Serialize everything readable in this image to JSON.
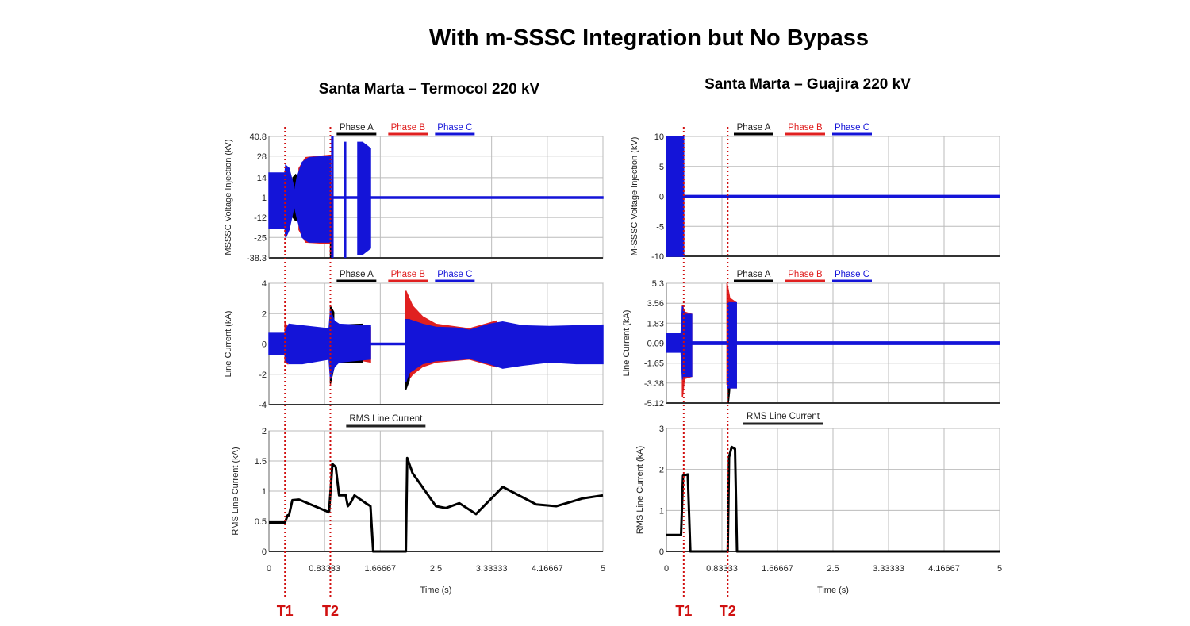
{
  "title": "With m-SSSC Integration but No Bypass",
  "panels": [
    {
      "subtitle": "Santa Marta – Termocol 220 kV"
    },
    {
      "subtitle": "Santa Marta – Guajira 220 kV"
    }
  ],
  "markers": {
    "color": "#d01010",
    "left": [
      {
        "label": "T1",
        "t": 0.24
      },
      {
        "label": "T2",
        "t": 0.92
      }
    ],
    "right": [
      {
        "label": "T1",
        "t": 0.26
      },
      {
        "label": "T2",
        "t": 0.92
      }
    ]
  },
  "phase_colors": {
    "A": "#000000",
    "B": "#e02020",
    "C": "#1414d8"
  },
  "chart_data": [
    {
      "type": "area",
      "panel": 0,
      "ylabel": "MSSSC Voltage Injection (kV)",
      "xlabel": "",
      "legend": [
        "Phase A",
        "Phase B",
        "Phase C"
      ],
      "legend_placement": "top-center",
      "xlim": [
        0,
        5
      ],
      "ylim": [
        -38.3,
        40.8
      ],
      "xticks": [],
      "yticks": [
        "40.8",
        "28",
        "14",
        "1",
        "-12",
        "-25",
        "-38.3"
      ],
      "grid": true,
      "series": [
        {
          "name": "Phase B",
          "envelopes": [
            [
              [
                0.45,
                20,
                -20
              ],
              [
                0.55,
                27,
                -28
              ],
              [
                0.9,
                28.5,
                -29
              ]
            ]
          ]
        },
        {
          "name": "Phase A",
          "envelopes": [
            [
              [
                0.36,
                14,
                -12
              ],
              [
                0.4,
                16,
                -14
              ],
              [
                0.44,
                14,
                -13
              ]
            ],
            [
              [
                0.92,
                0,
                -38.3
              ],
              [
                0.94,
                0,
                -38.3
              ]
            ]
          ]
        },
        {
          "name": "Phase C",
          "envelopes": [
            [
              [
                0,
                17,
                -19
              ],
              [
                0.24,
                17,
                -19
              ],
              [
                0.25,
                22,
                -25
              ],
              [
                0.3,
                20,
                -20
              ],
              [
                0.36,
                10,
                -8
              ],
              [
                0.38,
                4,
                -4
              ],
              [
                0.42,
                14,
                -12
              ],
              [
                0.5,
                24,
                -25
              ],
              [
                0.6,
                27,
                -28
              ],
              [
                0.92,
                28,
                -28
              ]
            ],
            [
              [
                0.93,
                1.5,
                0.5
              ],
              [
                5,
                1.5,
                0.5
              ]
            ],
            [
              [
                0.94,
                40.8,
                -38
              ],
              [
                0.96,
                40.8,
                -38
              ]
            ],
            [
              [
                1.13,
                37,
                -38
              ],
              [
                1.15,
                37,
                -38
              ]
            ],
            [
              [
                1.33,
                37,
                -36
              ],
              [
                1.4,
                37,
                -36
              ],
              [
                1.52,
                33,
                -32
              ]
            ]
          ]
        }
      ]
    },
    {
      "type": "area",
      "panel": 0,
      "ylabel": "Line Current (kA)",
      "xlabel": "",
      "legend": [
        "Phase A",
        "Phase B",
        "Phase C"
      ],
      "legend_placement": "top-center",
      "xlim": [
        0,
        5
      ],
      "ylim": [
        -4,
        4
      ],
      "xticks": [],
      "yticks": [
        "4",
        "2",
        "0",
        "-2",
        "-4"
      ],
      "grid": true,
      "series": [
        {
          "name": "Phase B",
          "envelopes": [
            [
              [
                0.24,
                1.4,
                -1.2
              ],
              [
                0.28,
                1.1,
                -1.3
              ]
            ],
            [
              [
                0.92,
                2.3,
                -2.7
              ],
              [
                0.96,
                1.5,
                -1.6
              ]
            ],
            [
              [
                1.4,
                1.25,
                -1.1
              ],
              [
                1.52,
                1.1,
                -1.2
              ]
            ],
            [
              [
                2.05,
                3.5,
                -2.6
              ],
              [
                2.15,
                2.5,
                -2.0
              ],
              [
                2.3,
                1.8,
                -1.5
              ],
              [
                2.5,
                1.3,
                -1.2
              ],
              [
                3.0,
                1.0,
                -1.0
              ],
              [
                3.4,
                1.5,
                -1.5
              ]
            ]
          ]
        },
        {
          "name": "Phase A",
          "envelopes": [
            [
              [
                0.92,
                2.5,
                -2.6
              ],
              [
                0.97,
                2.1,
                -1.6
              ]
            ],
            [
              [
                1.05,
                1.25,
                -1.2
              ],
              [
                1.4,
                1.3,
                -1.2
              ]
            ],
            [
              [
                2.05,
                1.6,
                -3.0
              ],
              [
                2.1,
                1.6,
                -2.4
              ]
            ]
          ]
        },
        {
          "name": "Phase C",
          "envelopes": [
            [
              [
                0,
                0.7,
                -0.7
              ],
              [
                0.24,
                0.7,
                -0.7
              ],
              [
                0.25,
                0.9,
                -1.1
              ],
              [
                0.3,
                1.3,
                -1.3
              ],
              [
                0.5,
                1.2,
                -1.3
              ],
              [
                0.9,
                1.0,
                -1.0
              ],
              [
                0.92,
                2.2,
                -2.3
              ],
              [
                0.98,
                1.5,
                -1.5
              ],
              [
                1.05,
                1.3,
                -1.2
              ],
              [
                1.52,
                1.2,
                -1.0
              ]
            ],
            [
              [
                1.52,
                0.05,
                -0.05
              ],
              [
                2.05,
                0.05,
                -0.05
              ]
            ],
            [
              [
                2.05,
                1.6,
                -2.5
              ],
              [
                2.1,
                1.6,
                -1.9
              ],
              [
                2.3,
                1.3,
                -1.3
              ],
              [
                2.5,
                1.1,
                -1.1
              ],
              [
                2.8,
                1.05,
                -1.05
              ],
              [
                3.0,
                0.9,
                -0.95
              ],
              [
                3.3,
                1.3,
                -1.3
              ],
              [
                3.5,
                1.45,
                -1.6
              ],
              [
                3.8,
                1.2,
                -1.4
              ],
              [
                4.2,
                1.15,
                -1.2
              ],
              [
                4.6,
                1.2,
                -1.3
              ],
              [
                5,
                1.25,
                -1.3
              ]
            ]
          ]
        }
      ]
    },
    {
      "type": "line",
      "panel": 0,
      "title": "RMS Line Current",
      "ylabel": "RMS Line Current (kA)",
      "xlabel": "Time (s)",
      "xlim": [
        0,
        5
      ],
      "ylim": [
        0,
        2
      ],
      "xticks": [
        "0",
        "0.83333",
        "1.66667",
        "2.5",
        "3.33333",
        "4.16667",
        "5"
      ],
      "yticks": [
        "2",
        "1.5",
        "1",
        "0.5",
        "0"
      ],
      "grid": true,
      "x": [
        0,
        0.24,
        0.28,
        0.3,
        0.35,
        0.45,
        0.9,
        0.95,
        1.0,
        1.05,
        1.15,
        1.18,
        1.22,
        1.28,
        1.45,
        1.52,
        1.56,
        2.05,
        2.07,
        2.15,
        2.5,
        2.65,
        2.85,
        3.1,
        3.5,
        4.0,
        4.3,
        4.7,
        5.0
      ],
      "y": [
        0.48,
        0.48,
        0.6,
        0.6,
        0.85,
        0.86,
        0.65,
        1.45,
        1.4,
        0.93,
        0.93,
        0.75,
        0.8,
        0.93,
        0.8,
        0.75,
        0,
        0,
        1.55,
        1.3,
        0.75,
        0.72,
        0.8,
        0.62,
        1.07,
        0.78,
        0.75,
        0.88,
        0.93
      ]
    },
    {
      "type": "area",
      "panel": 1,
      "ylabel": "M-SSSC Voltage Injection (kV)",
      "xlabel": "",
      "legend": [
        "Phase A",
        "Phase B",
        "Phase C"
      ],
      "legend_placement": "top-center",
      "xlim": [
        0,
        5
      ],
      "ylim": [
        -10,
        10
      ],
      "xticks": [],
      "yticks": [
        "10",
        "5",
        "0",
        "-5",
        "-10"
      ],
      "grid": true,
      "series": [
        {
          "name": "Phase C",
          "envelopes": [
            [
              [
                0,
                10,
                -10
              ],
              [
                0.26,
                10,
                -10
              ]
            ],
            [
              [
                0.26,
                0.15,
                -0.15
              ],
              [
                5,
                0.15,
                -0.15
              ]
            ]
          ]
        }
      ]
    },
    {
      "type": "area",
      "panel": 1,
      "ylabel": "Line Current (kA)",
      "xlabel": "",
      "legend": [
        "Phase A",
        "Phase B",
        "Phase C"
      ],
      "legend_placement": "top-center",
      "xlim": [
        0,
        5
      ],
      "ylim": [
        -5.12,
        5.3
      ],
      "xticks": [],
      "yticks": [
        "5.3",
        "3.56",
        "1.83",
        "0.09",
        "-1.65",
        "-3.38",
        "-5.12"
      ],
      "grid": true,
      "series": [
        {
          "name": "Phase B",
          "envelopes": [
            [
              [
                0.24,
                3.4,
                -4.6
              ],
              [
                0.27,
                2.8,
                -3.0
              ],
              [
                0.38,
                2.6,
                -2.8
              ]
            ],
            [
              [
                0.91,
                5.3,
                -3.5
              ],
              [
                0.95,
                4.0,
                -3.8
              ],
              [
                1.05,
                3.6,
                -3.8
              ]
            ]
          ]
        },
        {
          "name": "Phase A",
          "envelopes": [
            [
              [
                0.93,
                0,
                -5.12
              ],
              [
                0.95,
                0,
                -4.0
              ]
            ]
          ]
        },
        {
          "name": "Phase C",
          "envelopes": [
            [
              [
                0,
                0.9,
                -0.7
              ],
              [
                0.22,
                0.9,
                -0.7
              ],
              [
                0.24,
                3.3,
                -3.0
              ],
              [
                0.27,
                2.6,
                -2.8
              ],
              [
                0.38,
                2.6,
                -2.8
              ]
            ],
            [
              [
                0.38,
                0.2,
                -0.02
              ],
              [
                5,
                0.2,
                -0.02
              ]
            ],
            [
              [
                0.92,
                3.6,
                -3.8
              ],
              [
                1.05,
                3.6,
                -3.8
              ]
            ]
          ]
        }
      ]
    },
    {
      "type": "line",
      "panel": 1,
      "title": "RMS Line Current",
      "ylabel": "RMS Line Current (kA)",
      "xlabel": "Time (s)",
      "xlim": [
        0,
        5
      ],
      "ylim": [
        0,
        3
      ],
      "xticks": [
        "0",
        "0.83333",
        "1.66667",
        "2.5",
        "3.33333",
        "4.16667",
        "5"
      ],
      "yticks": [
        "3",
        "2",
        "1",
        "0"
      ],
      "grid": true,
      "x": [
        0,
        0.22,
        0.25,
        0.32,
        0.36,
        0.92,
        0.94,
        0.98,
        1.03,
        1.06,
        5
      ],
      "y": [
        0.4,
        0.4,
        1.85,
        1.88,
        0,
        0,
        2.3,
        2.55,
        2.5,
        0,
        0
      ]
    }
  ]
}
